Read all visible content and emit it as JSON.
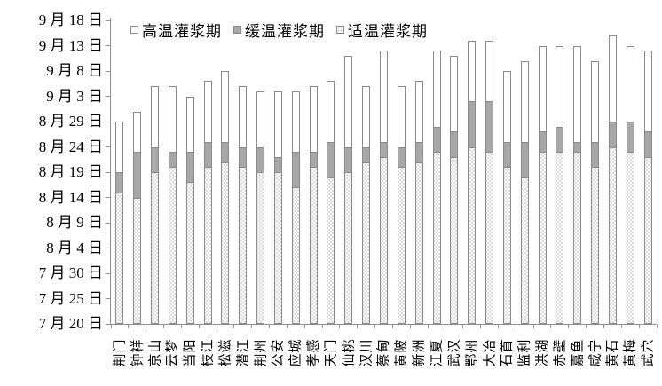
{
  "chart_data": {
    "type": "bar",
    "stacked": true,
    "title": "",
    "xlabel": "",
    "ylabel": "",
    "grid": false,
    "legend_position": "top",
    "legend": [
      {
        "label": "高温灌浆期",
        "marker": "white-square"
      },
      {
        "label": "缓温灌浆期",
        "marker": "gray-square"
      },
      {
        "label": "适温灌浆期",
        "marker": "dotted-square"
      }
    ],
    "y_axis": {
      "unit": "date",
      "baseline_date": "7月20日",
      "top_date": "9月18日",
      "tick_interval_days": 5,
      "tick_labels_top_to_bottom": [
        "9 月 18 日",
        "9 月 13 日",
        "9 月 8 日",
        "9 月 3 日",
        "8 月 29 日",
        "8 月 24 日",
        "8 月 19 日",
        "8 月 14 日",
        "8 月 9 日",
        "8 月 4 日",
        "7 月 30 日",
        "7 月 25 日",
        "7 月 20 日"
      ],
      "tick_days_top_to_bottom": [
        60,
        55,
        50,
        45,
        40,
        35,
        30,
        25,
        20,
        15,
        10,
        5,
        0
      ]
    },
    "categories": [
      "荆门",
      "钟祥",
      "京山",
      "云梦",
      "当阳",
      "枝江",
      "松滋",
      "潜江",
      "荆州",
      "公安",
      "应城",
      "孝感",
      "天门",
      "仙桃",
      "汉川",
      "蔡甸",
      "黄陂",
      "新洲",
      "江夏",
      "武汉",
      "鄂州",
      "大冶",
      "石首",
      "监利",
      "洪湖",
      "赤壁",
      "嘉鱼",
      "咸宁",
      "黄石",
      "黄梅",
      "武穴"
    ],
    "series": [
      {
        "name": "适温灌浆期",
        "key": "suitable",
        "end_day_after_jul20": [
          26,
          25,
          30,
          31,
          28,
          31,
          32,
          31,
          30,
          30,
          27,
          31,
          29,
          30,
          32,
          33,
          31,
          32,
          34,
          33,
          35,
          34,
          31,
          29,
          34,
          34,
          34,
          31,
          35,
          34,
          33
        ],
        "end_date": [
          "8月15日",
          "8月14日",
          "8月19日",
          "8月20日",
          "8月17日",
          "8月20日",
          "8月21日",
          "8月20日",
          "8月19日",
          "8月19日",
          "8月16日",
          "8月20日",
          "8月18日",
          "8月19日",
          "8月21日",
          "8月22日",
          "8月20日",
          "8月21日",
          "8月23日",
          "8月22日",
          "8月24日",
          "8月23日",
          "8月20日",
          "8月18日",
          "8月23日",
          "8月23日",
          "8月23日",
          "8月20日",
          "8月24日",
          "8月23日",
          "8月22日"
        ]
      },
      {
        "name": "缓温灌浆期",
        "key": "slow",
        "end_day_after_jul20": [
          30,
          34,
          35,
          34,
          34,
          36,
          36,
          35,
          35,
          33,
          34,
          34,
          36,
          35,
          35,
          36,
          35,
          36,
          39,
          38,
          44,
          44,
          36,
          36,
          38,
          39,
          36,
          36,
          40,
          40,
          38
        ],
        "end_date": [
          "8月19日",
          "8月23日",
          "8月24日",
          "8月23日",
          "8月23日",
          "8月25日",
          "8月25日",
          "8月24日",
          "8月24日",
          "8月22日",
          "8月23日",
          "8月23日",
          "8月25日",
          "8月24日",
          "8月24日",
          "8月25日",
          "8月24日",
          "8月25日",
          "8月28日",
          "8月27日",
          "9月2日",
          "9月2日",
          "8月25日",
          "8月25日",
          "8月27日",
          "8月28日",
          "8月25日",
          "8月25日",
          "8月29日",
          "8月29日",
          "8月27日"
        ]
      },
      {
        "name": "高温灌浆期",
        "key": "high",
        "end_day_after_jul20": [
          40,
          42,
          47,
          47,
          45,
          48,
          50,
          47,
          46,
          46,
          46,
          47,
          48,
          53,
          47,
          54,
          47,
          48,
          54,
          53,
          56,
          56,
          50,
          52,
          55,
          55,
          55,
          52,
          57,
          55,
          54
        ],
        "end_date": [
          "8月29日",
          "8月31日",
          "9月5日",
          "9月5日",
          "9月3日",
          "9月6日",
          "9月8日",
          "9月5日",
          "9月4日",
          "9月4日",
          "9月4日",
          "9月5日",
          "9月6日",
          "9月11日",
          "9月5日",
          "9月12日",
          "9月5日",
          "9月6日",
          "9月12日",
          "9月11日",
          "9月14日",
          "9月14日",
          "9月8日",
          "9月10日",
          "9月13日",
          "9月13日",
          "9月13日",
          "9月10日",
          "9月15日",
          "9月13日",
          "9月12日"
        ]
      }
    ],
    "colors": {
      "axis": "#8f8f8f",
      "bar_border": "#8a8a8a",
      "high_fill": "#ffffff",
      "slow_fill": "#a7a7a7",
      "suitable_fill": "#fdfdfd",
      "suitable_dot": "#d0d0d0",
      "text": "#000000"
    }
  }
}
